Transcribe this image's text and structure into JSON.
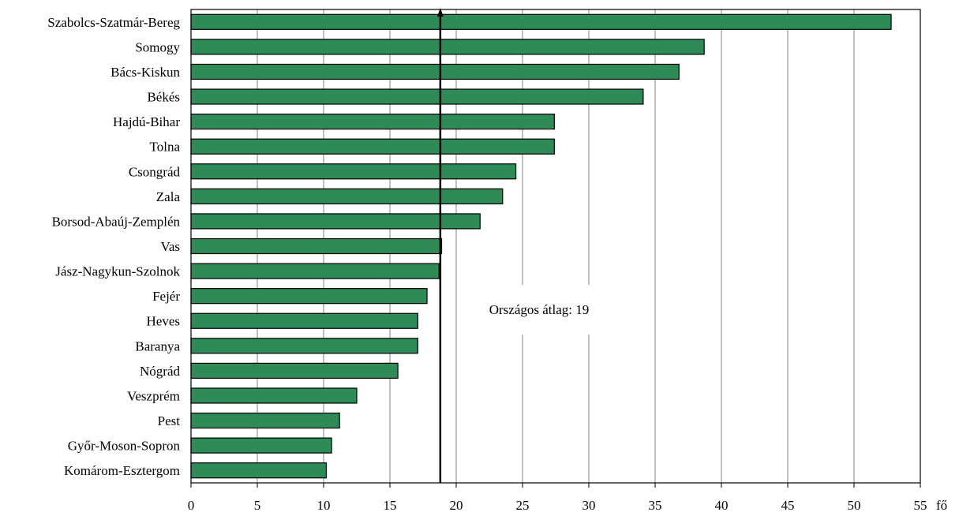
{
  "chart_data": {
    "type": "bar",
    "orientation": "horizontal",
    "categories": [
      "Szabolcs-Szatmár-Bereg",
      "Somogy",
      "Bács-Kiskun",
      "Békés",
      "Hajdú-Bihar",
      "Tolna",
      "Csongrád",
      "Zala",
      "Borsod-Abaúj-Zemplén",
      "Vas",
      "Jász-Nagykun-Szolnok",
      "Fejér",
      "Heves",
      "Baranya",
      "Nógrád",
      "Veszprém",
      "Pest",
      "Győr-Moson-Sopron",
      "Komárom-Esztergom"
    ],
    "values": [
      52.8,
      38.7,
      36.8,
      34.1,
      27.4,
      27.4,
      24.5,
      23.5,
      21.8,
      18.9,
      18.7,
      17.8,
      17.1,
      17.1,
      15.6,
      12.5,
      11.2,
      10.6,
      10.2
    ],
    "xlim": [
      0,
      55
    ],
    "xticks": [
      0,
      5,
      10,
      15,
      20,
      25,
      30,
      35,
      40,
      45,
      50,
      55
    ],
    "xunit": "fő",
    "grid": true,
    "bar_color": "#2e8b57",
    "reference_line": {
      "value": 18.8,
      "label": "Országos átlag: 19"
    }
  }
}
